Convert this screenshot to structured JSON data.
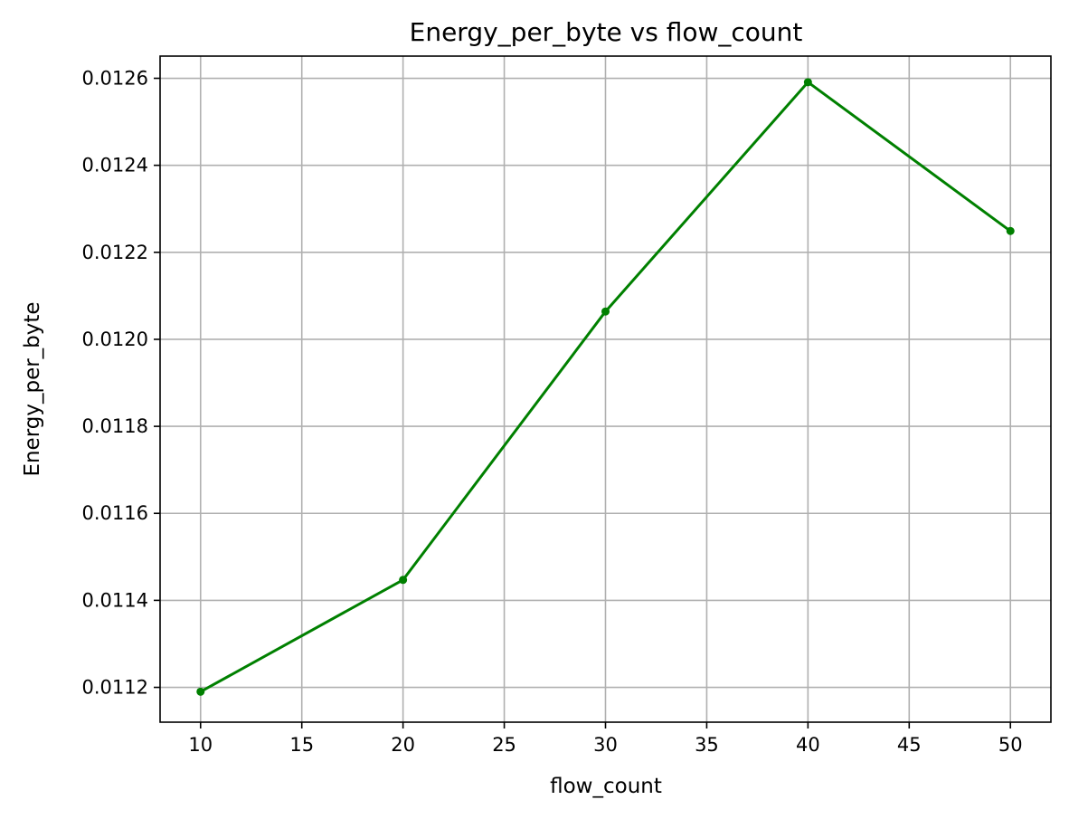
{
  "chart_data": {
    "type": "line",
    "title": "Energy_per_byte vs flow_count",
    "xlabel": "flow_count",
    "ylabel": "Energy_per_byte",
    "x": [
      10,
      20,
      30,
      40,
      50
    ],
    "series": [
      {
        "values": [
          0.01119,
          0.011447,
          0.012064,
          0.012591,
          0.012249
        ],
        "color": "#008000",
        "marker": "circle"
      }
    ],
    "xlim": [
      8,
      52
    ],
    "ylim": [
      0.01112,
      0.012651
    ],
    "xticks": [
      10,
      15,
      20,
      25,
      30,
      35,
      40,
      45,
      50
    ],
    "xtick_labels": [
      "10",
      "15",
      "20",
      "25",
      "30",
      "35",
      "40",
      "45",
      "50"
    ],
    "yticks": [
      0.0112,
      0.0114,
      0.0116,
      0.0118,
      0.012,
      0.0122,
      0.0124,
      0.0126
    ],
    "ytick_labels": [
      "0.0112",
      "0.0114",
      "0.0116",
      "0.0118",
      "0.0120",
      "0.0122",
      "0.0124",
      "0.0126"
    ],
    "grid": true,
    "legend": "none"
  }
}
